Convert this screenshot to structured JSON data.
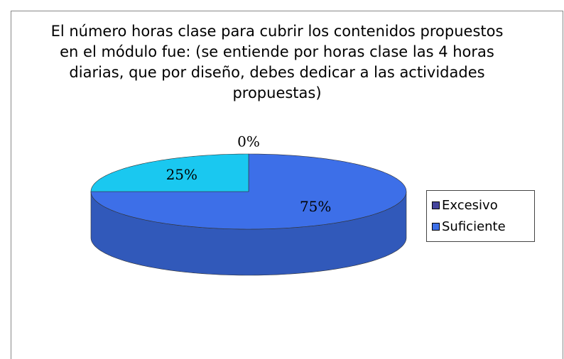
{
  "chart_data": {
    "type": "pie",
    "title": "El número horas clase para cubrir los contenidos propuestos en el módulo fue: (se entiende por horas clase las 4 horas diarias, que por diseño, debes dedicar a las actividades propuestas)",
    "categories": [
      "Excesivo",
      "Suficiente",
      null
    ],
    "values": [
      0,
      75,
      25
    ],
    "value_labels": [
      "0%",
      "75%",
      "25%"
    ],
    "colors": [
      "#44449c",
      "#3d6fe8",
      "#1ac8f0"
    ],
    "legend": "right"
  }
}
